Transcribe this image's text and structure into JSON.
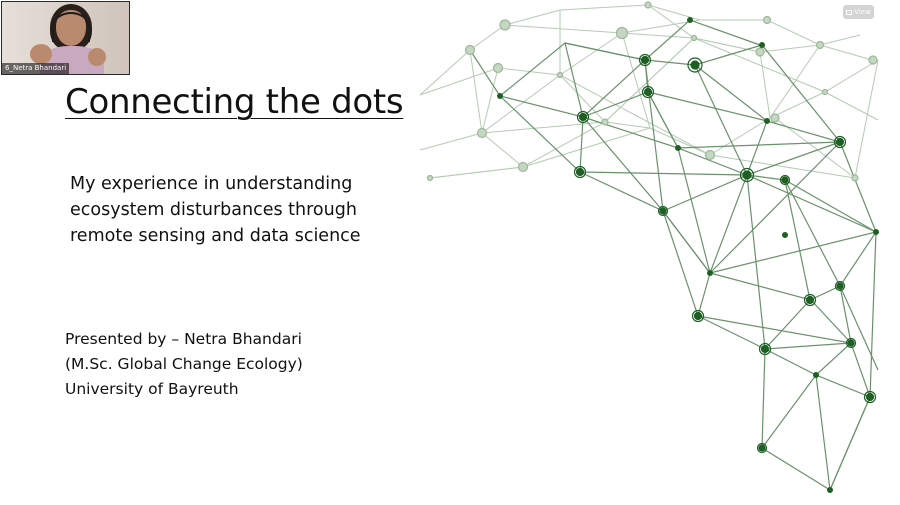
{
  "slide": {
    "title": "Connecting the dots",
    "subtitle_lines": [
      "My experience in understanding",
      "ecosystem disturbances through",
      "remote sensing and data science"
    ],
    "presenter_lines": [
      "Presented by – Netra Bhandari",
      "(M.Sc. Global Change Ecology)",
      "University of Bayreuth"
    ]
  },
  "video": {
    "participant_name": "6_Netra Bhandari"
  },
  "view_button": {
    "label": "View",
    "icon": "grid-icon"
  },
  "colors": {
    "network_dark": "#1f5f25",
    "network_line": "#5d8a5f",
    "network_light": "#aac2a8"
  }
}
